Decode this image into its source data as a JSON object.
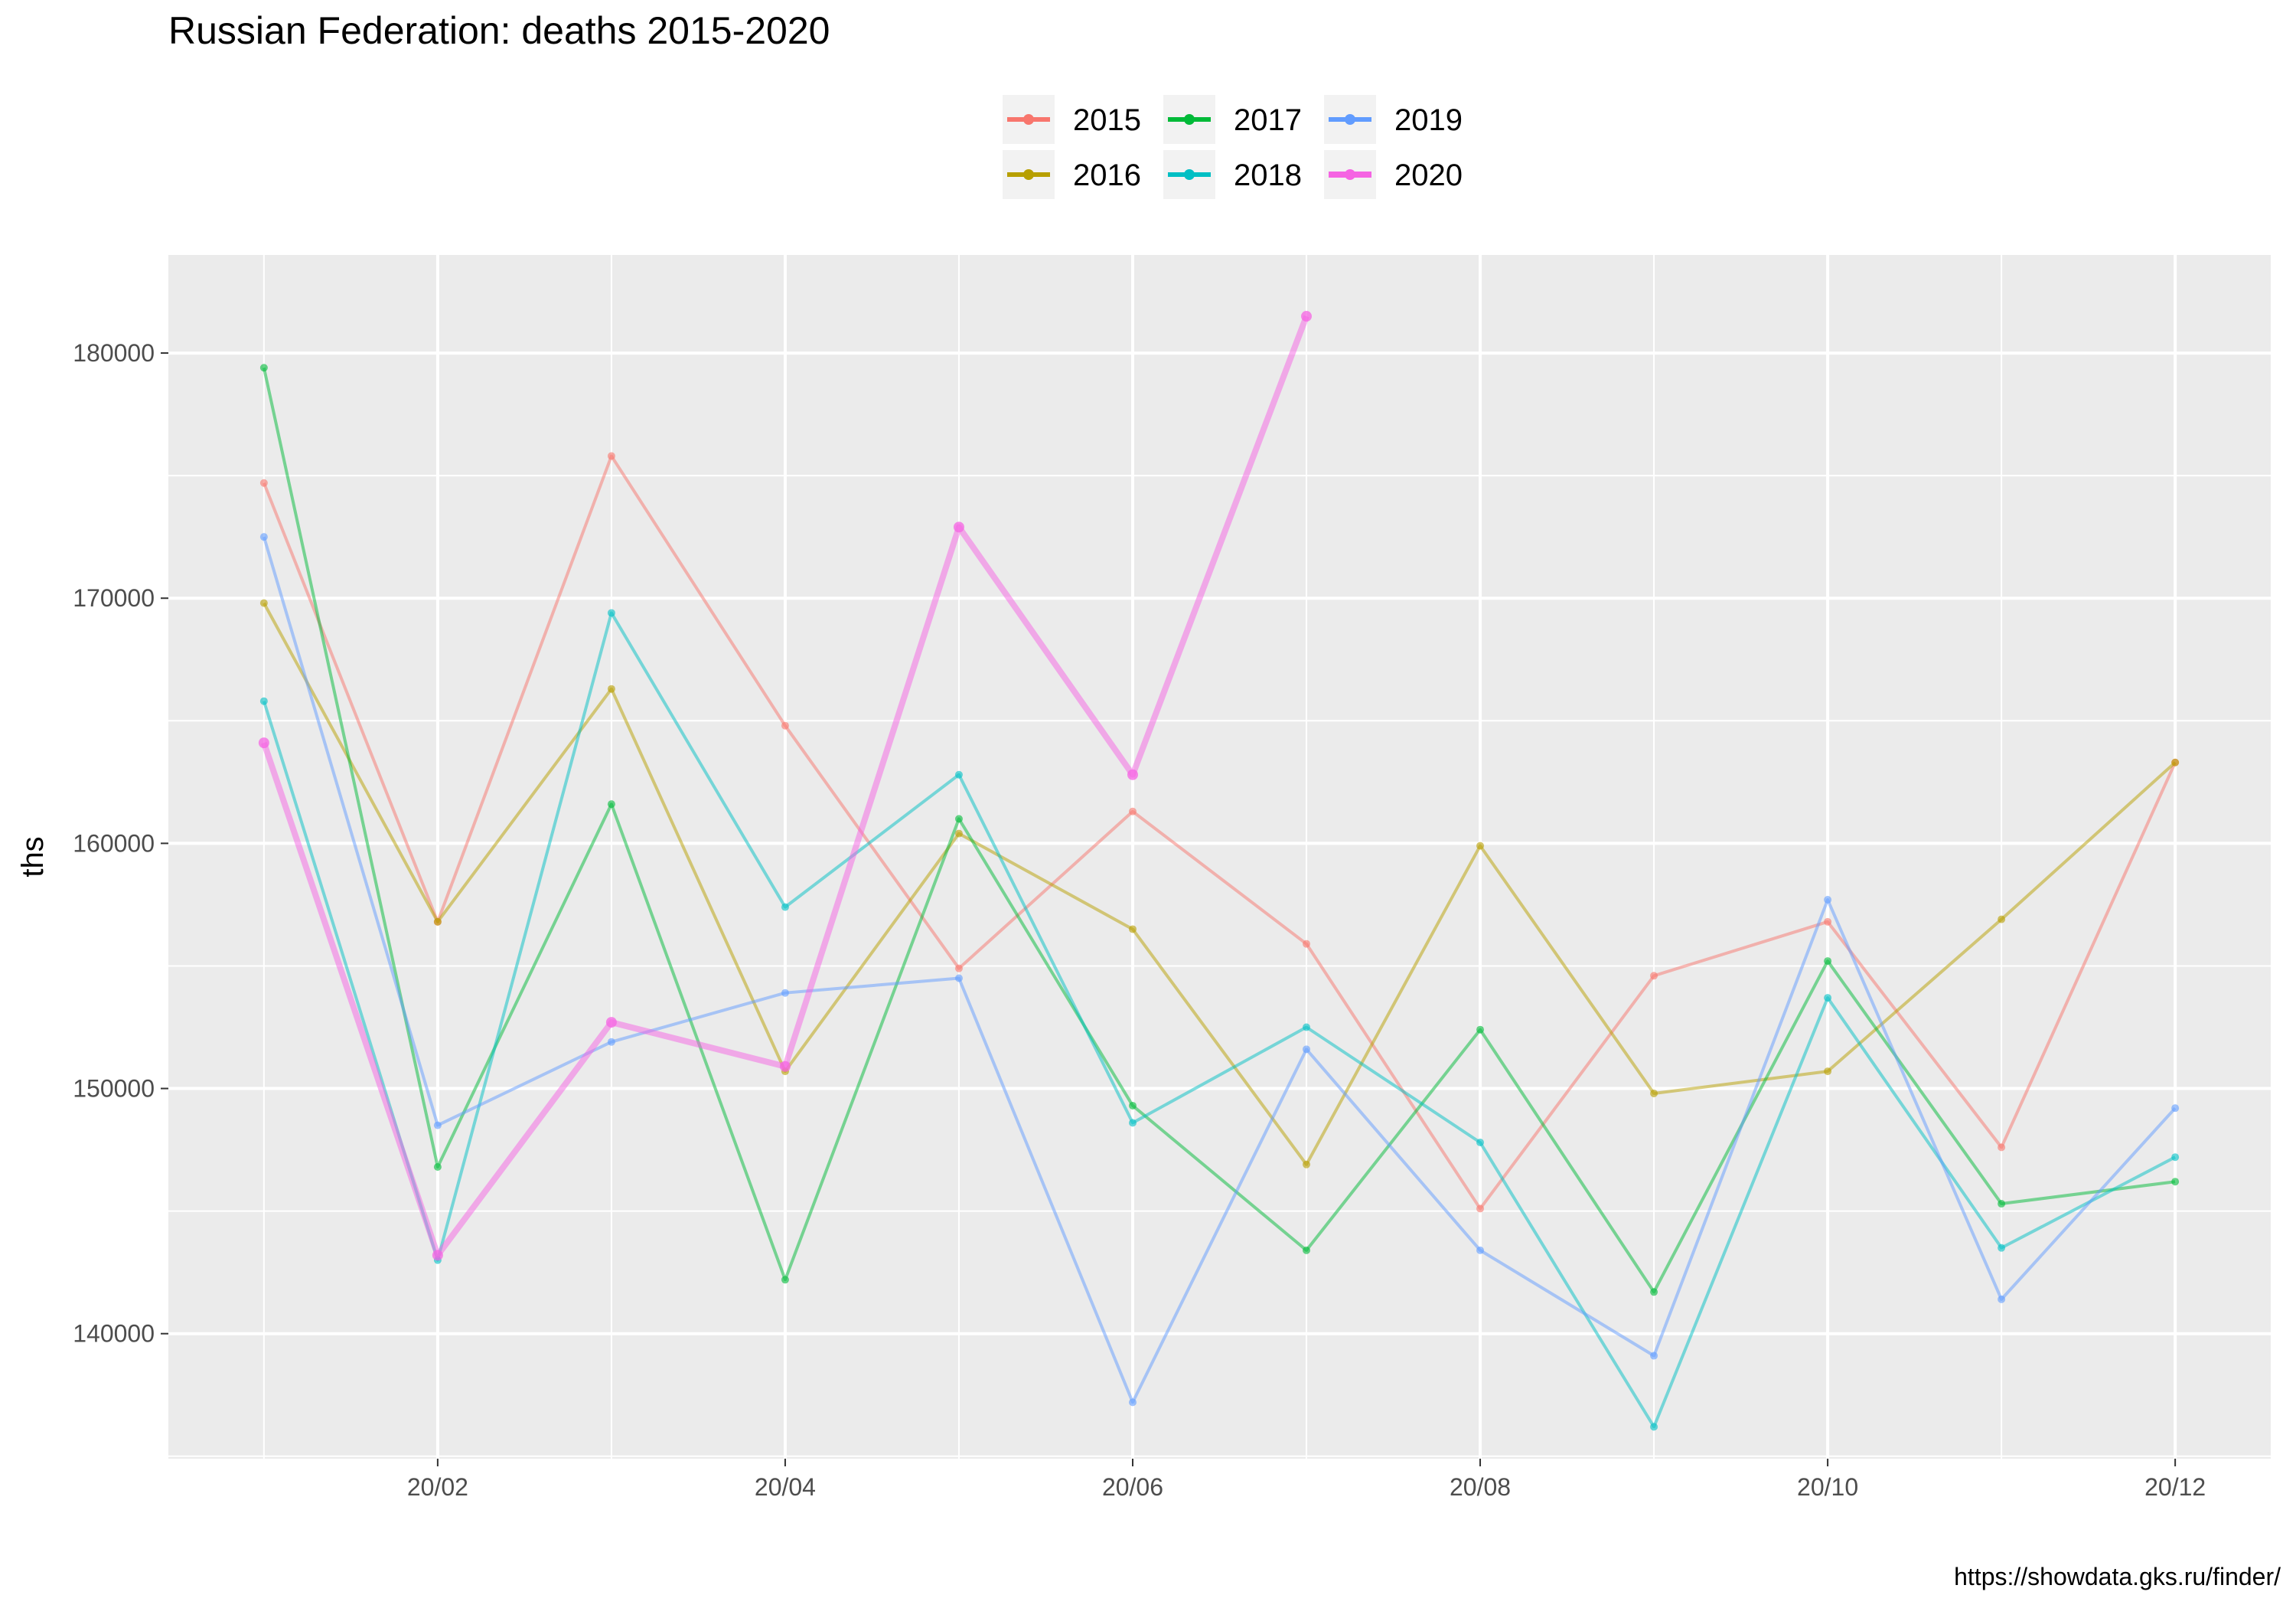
{
  "chart_data": {
    "type": "line",
    "title": "Russian Federation: deaths 2015-2020",
    "xlabel": "",
    "ylabel": "ths",
    "caption": "https://showdata.gks.ru/finder/",
    "x_month_index": [
      1,
      2,
      3,
      4,
      5,
      6,
      7,
      8,
      9,
      10,
      11,
      12
    ],
    "x_tick_labels": [
      {
        "month": 2,
        "label": "20/02"
      },
      {
        "month": 4,
        "label": "20/04"
      },
      {
        "month": 6,
        "label": "20/06"
      },
      {
        "month": 8,
        "label": "20/08"
      },
      {
        "month": 10,
        "label": "20/10"
      },
      {
        "month": 12,
        "label": "20/12"
      }
    ],
    "y_ticks": [
      140000,
      150000,
      160000,
      170000,
      180000
    ],
    "ylim": [
      134900,
      184000
    ],
    "xlim": [
      0.45,
      12.55
    ],
    "grid": true,
    "legend_position": "top",
    "series": [
      {
        "name": "2015",
        "color": "#F8766D",
        "emphasis": false,
        "values": [
          174700,
          156800,
          175800,
          164800,
          154900,
          161300,
          155900,
          145100,
          154600,
          156800,
          147600,
          163300
        ]
      },
      {
        "name": "2016",
        "color": "#B79F00",
        "emphasis": false,
        "values": [
          169800,
          156800,
          166300,
          150700,
          160400,
          156500,
          146900,
          159900,
          149800,
          150700,
          156900,
          163300
        ]
      },
      {
        "name": "2017",
        "color": "#00BA38",
        "emphasis": false,
        "values": [
          179400,
          146800,
          161600,
          142200,
          161000,
          149300,
          143400,
          152400,
          141700,
          155200,
          145300,
          146200
        ]
      },
      {
        "name": "2018",
        "color": "#00BFC4",
        "emphasis": false,
        "values": [
          165800,
          143000,
          169400,
          157400,
          162800,
          148600,
          152500,
          147800,
          136200,
          153700,
          143500,
          147200
        ]
      },
      {
        "name": "2019",
        "color": "#619CFF",
        "emphasis": false,
        "values": [
          172500,
          148500,
          151900,
          153900,
          154500,
          137200,
          151600,
          143400,
          139100,
          157700,
          141400,
          149200
        ]
      },
      {
        "name": "2020",
        "color": "#F564E3",
        "emphasis": true,
        "values": [
          164100,
          143200,
          152700,
          150900,
          172900,
          162800,
          181500
        ]
      }
    ]
  }
}
